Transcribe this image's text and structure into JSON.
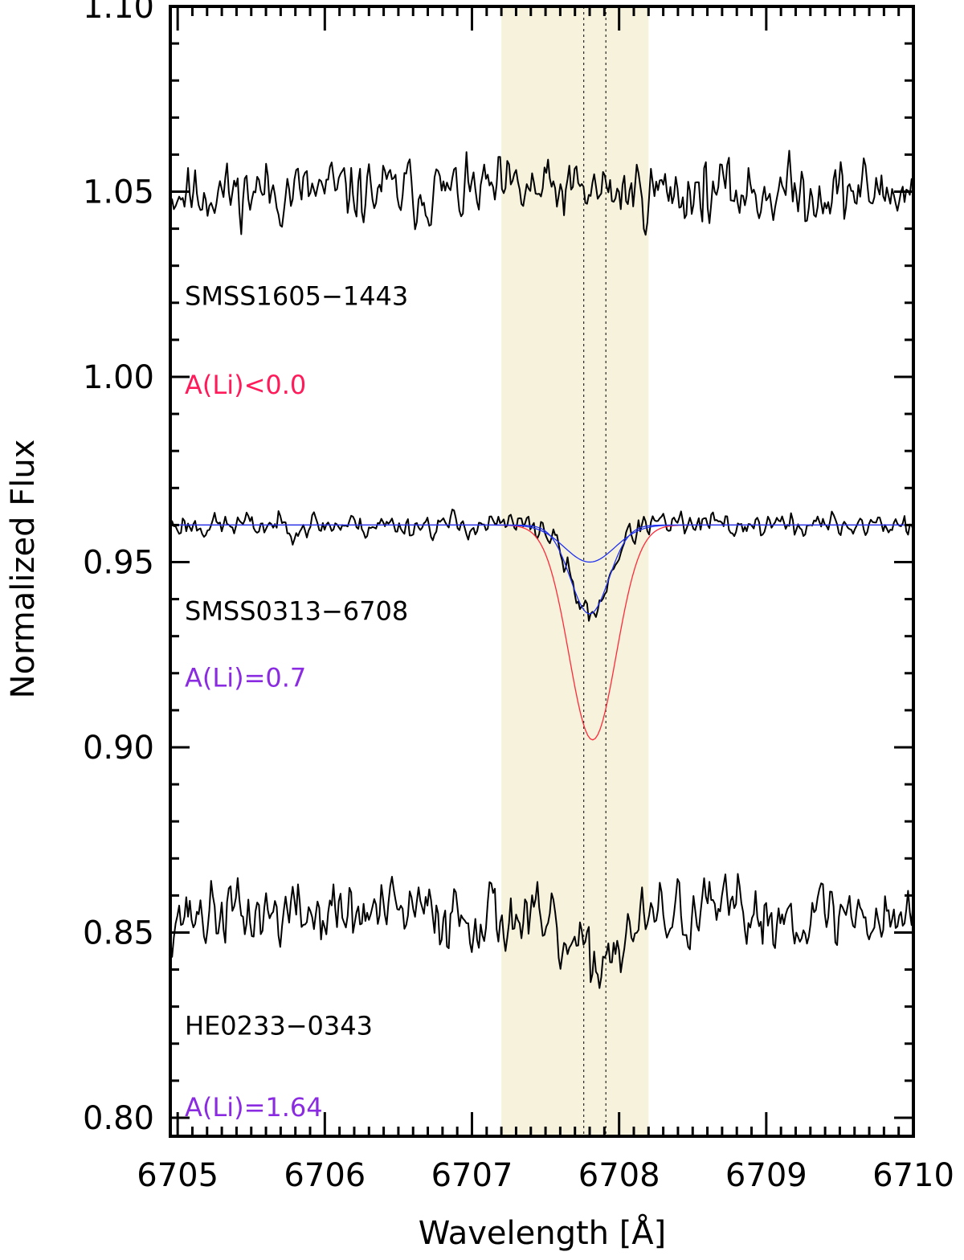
{
  "chart_data": {
    "type": "line",
    "title": "",
    "xlabel": "Wavelength [Å]",
    "ylabel": "Normalized Flux",
    "xlim": [
      6704.95,
      6710.0
    ],
    "ylim": [
      0.795,
      1.1
    ],
    "x_ticks": [
      6705,
      6706,
      6707,
      6708,
      6709,
      6710
    ],
    "x_tick_labels": [
      "6705",
      "6706",
      "6707",
      "6708",
      "6709",
      "6710"
    ],
    "y_ticks": [
      0.8,
      0.85,
      0.9,
      0.95,
      1.0,
      1.05,
      1.1
    ],
    "y_tick_labels": [
      "0.80",
      "0.85",
      "0.90",
      "0.95",
      "1.00",
      "1.05",
      "1.10"
    ],
    "grid": false,
    "highlight_band": {
      "x_range": [
        6707.2,
        6708.2
      ],
      "color": "#f6f2dc"
    },
    "reference_lines": [
      6707.76,
      6707.91
    ],
    "colors": {
      "spectrum": "#000000",
      "upper_limit_text": "#ff1a5a",
      "abundance_text": "#8a2be2",
      "red_model": "#ff2a3a",
      "blue_model": "#2233ee",
      "band": "#f6f2dc"
    },
    "spectra": [
      {
        "star": "SMSS1605−1443",
        "abundance": "A(Li)<0.0",
        "abundance_color": "#ff1a5a",
        "label_y": 1.022,
        "abundance_y": 0.998,
        "continuum": 1.05,
        "noise": 0.011,
        "seed": 11,
        "dips": []
      },
      {
        "star": "SMSS0313−6708",
        "abundance": "A(Li)=0.7",
        "abundance_color": "#8a2be2",
        "label_y": 0.937,
        "abundance_y": 0.919,
        "continuum": 0.96,
        "noise": 0.0045,
        "seed": 23,
        "dips": [
          {
            "center": 6707.8,
            "depth": 0.024,
            "sigma": 0.13
          }
        ]
      },
      {
        "star": "HE0233−0343",
        "abundance": "A(Li)=1.64",
        "abundance_color": "#8a2be2",
        "label_y": 0.825,
        "abundance_y": 0.803,
        "continuum": 0.855,
        "noise": 0.012,
        "seed": 37,
        "dips": [
          {
            "center": 6707.8,
            "depth": 0.012,
            "sigma": 0.22
          }
        ]
      }
    ],
    "models": [
      {
        "color": "#ff2a3a",
        "continuum": 0.96,
        "center": 6707.82,
        "depth": 0.058,
        "sigma": 0.16
      },
      {
        "color": "#2233ee",
        "continuum": 0.96,
        "center": 6707.8,
        "depth": 0.024,
        "sigma": 0.13
      },
      {
        "color": "#2233ee",
        "continuum": 0.96,
        "center": 6707.8,
        "depth": 0.01,
        "sigma": 0.17
      }
    ]
  }
}
